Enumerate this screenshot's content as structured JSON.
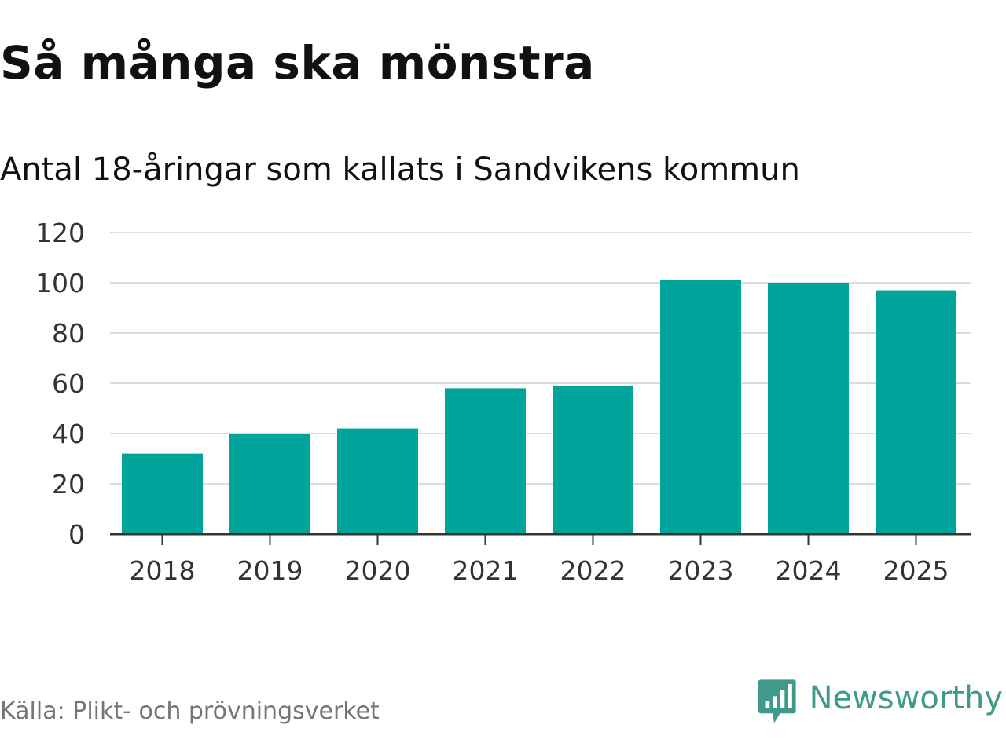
{
  "header": {
    "title": "Så många ska mönstra",
    "subtitle": "Antal 18-åringar som kallats i Sandvikens kommun"
  },
  "footer": {
    "source": "Källa: Plikt- och prövningsverket",
    "brand": "Newsworthy",
    "brand_icon": "newsworthy-logo-icon",
    "brand_color": "#3f9a8a"
  },
  "chart_data": {
    "type": "bar",
    "categories": [
      "2018",
      "2019",
      "2020",
      "2021",
      "2022",
      "2023",
      "2024",
      "2025"
    ],
    "values": [
      32,
      40,
      42,
      58,
      59,
      101,
      100,
      97
    ],
    "ylim": [
      0,
      120
    ],
    "yticks": [
      0,
      20,
      40,
      60,
      80,
      100,
      120
    ],
    "grid": true,
    "bar_color": "#00a49a"
  }
}
